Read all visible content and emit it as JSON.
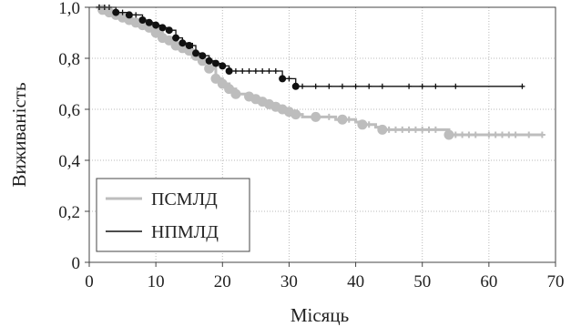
{
  "chart_data": {
    "type": "line",
    "xlabel": "Місяць",
    "ylabel": "Виживаність",
    "xlim": [
      0,
      70
    ],
    "ylim": [
      0,
      1.0
    ],
    "x_ticks": [
      0,
      10,
      20,
      30,
      40,
      50,
      60,
      70
    ],
    "y_ticks": [
      0,
      0.2,
      0.4,
      0.6,
      0.8,
      1.0
    ],
    "x_tick_labels": [
      "0",
      "10",
      "20",
      "30",
      "40",
      "50",
      "60",
      "70"
    ],
    "y_tick_labels": [
      "0",
      "0,2",
      "0,4",
      "0,6",
      "0,8",
      "1,0"
    ],
    "grid": true,
    "legend_position": "bottom-left",
    "series": [
      {
        "name": "ПСМЛД",
        "color": "#bdbdbd",
        "steps": [
          [
            1,
            1.0
          ],
          [
            2,
            0.99
          ],
          [
            3,
            0.98
          ],
          [
            4,
            0.97
          ],
          [
            5,
            0.96
          ],
          [
            6,
            0.95
          ],
          [
            7,
            0.94
          ],
          [
            8,
            0.93
          ],
          [
            9,
            0.92
          ],
          [
            10,
            0.9
          ],
          [
            11,
            0.88
          ],
          [
            12,
            0.87
          ],
          [
            13,
            0.85
          ],
          [
            14,
            0.84
          ],
          [
            15,
            0.83
          ],
          [
            16,
            0.81
          ],
          [
            17,
            0.79
          ],
          [
            18,
            0.76
          ],
          [
            19,
            0.72
          ],
          [
            20,
            0.7
          ],
          [
            21,
            0.68
          ],
          [
            22,
            0.66
          ],
          [
            24,
            0.65
          ],
          [
            25,
            0.64
          ],
          [
            26,
            0.63
          ],
          [
            27,
            0.62
          ],
          [
            28,
            0.61
          ],
          [
            29,
            0.6
          ],
          [
            30,
            0.59
          ],
          [
            31,
            0.58
          ],
          [
            32,
            0.57
          ],
          [
            34,
            0.57
          ],
          [
            37,
            0.56
          ],
          [
            40,
            0.55
          ],
          [
            41,
            0.54
          ],
          [
            43,
            0.53
          ],
          [
            44,
            0.52
          ],
          [
            54,
            0.5
          ],
          [
            68,
            0.5
          ]
        ],
        "events": [
          [
            2,
            0.99
          ],
          [
            3,
            0.98
          ],
          [
            4,
            0.97
          ],
          [
            5,
            0.96
          ],
          [
            6,
            0.95
          ],
          [
            7,
            0.94
          ],
          [
            8,
            0.93
          ],
          [
            9,
            0.92
          ],
          [
            10,
            0.9
          ],
          [
            11,
            0.88
          ],
          [
            12,
            0.87
          ],
          [
            13,
            0.85
          ],
          [
            14,
            0.84
          ],
          [
            15,
            0.83
          ],
          [
            16,
            0.81
          ],
          [
            17,
            0.79
          ],
          [
            18,
            0.76
          ],
          [
            19,
            0.72
          ],
          [
            20,
            0.7
          ],
          [
            21,
            0.68
          ],
          [
            22,
            0.66
          ],
          [
            24,
            0.65
          ],
          [
            25,
            0.64
          ],
          [
            26,
            0.63
          ],
          [
            27,
            0.62
          ],
          [
            28,
            0.61
          ],
          [
            29,
            0.6
          ],
          [
            30,
            0.59
          ],
          [
            31,
            0.58
          ],
          [
            34,
            0.57
          ],
          [
            38,
            0.56
          ],
          [
            41,
            0.54
          ],
          [
            44,
            0.52
          ],
          [
            54,
            0.5
          ]
        ],
        "censored": [
          [
            1.5,
            1.0
          ],
          [
            2.5,
            0.99
          ],
          [
            36,
            0.57
          ],
          [
            39,
            0.56
          ],
          [
            42,
            0.54
          ],
          [
            45,
            0.52
          ],
          [
            46,
            0.52
          ],
          [
            47,
            0.52
          ],
          [
            48,
            0.52
          ],
          [
            49,
            0.52
          ],
          [
            50,
            0.52
          ],
          [
            51,
            0.52
          ],
          [
            52,
            0.52
          ],
          [
            55,
            0.5
          ],
          [
            56,
            0.5
          ],
          [
            57,
            0.5
          ],
          [
            58,
            0.5
          ],
          [
            60,
            0.5
          ],
          [
            61,
            0.5
          ],
          [
            62,
            0.5
          ],
          [
            63,
            0.5
          ],
          [
            64,
            0.5
          ],
          [
            66,
            0.5
          ],
          [
            68,
            0.5
          ]
        ]
      },
      {
        "name": "НПМЛД",
        "color": "#111111",
        "steps": [
          [
            1,
            1.0
          ],
          [
            4,
            0.98
          ],
          [
            6,
            0.97
          ],
          [
            8,
            0.95
          ],
          [
            9,
            0.94
          ],
          [
            10,
            0.93
          ],
          [
            11,
            0.92
          ],
          [
            12,
            0.91
          ],
          [
            13,
            0.88
          ],
          [
            14,
            0.86
          ],
          [
            15,
            0.85
          ],
          [
            16,
            0.82
          ],
          [
            17,
            0.81
          ],
          [
            18,
            0.79
          ],
          [
            19,
            0.78
          ],
          [
            20,
            0.77
          ],
          [
            21,
            0.75
          ],
          [
            29,
            0.72
          ],
          [
            31,
            0.69
          ],
          [
            65,
            0.69
          ]
        ],
        "events": [
          [
            4,
            0.98
          ],
          [
            6,
            0.97
          ],
          [
            8,
            0.95
          ],
          [
            9,
            0.94
          ],
          [
            10,
            0.93
          ],
          [
            11,
            0.92
          ],
          [
            12,
            0.91
          ],
          [
            13,
            0.88
          ],
          [
            14,
            0.86
          ],
          [
            15,
            0.85
          ],
          [
            16,
            0.82
          ],
          [
            17,
            0.81
          ],
          [
            18,
            0.79
          ],
          [
            19,
            0.78
          ],
          [
            20,
            0.77
          ],
          [
            21,
            0.75
          ],
          [
            29,
            0.72
          ],
          [
            31,
            0.69
          ]
        ],
        "censored": [
          [
            1.5,
            1.0
          ],
          [
            2.3,
            1.0
          ],
          [
            3,
            1.0
          ],
          [
            5,
            0.98
          ],
          [
            7,
            0.97
          ],
          [
            15.5,
            0.85
          ],
          [
            22,
            0.75
          ],
          [
            23,
            0.75
          ],
          [
            24,
            0.75
          ],
          [
            25,
            0.75
          ],
          [
            26,
            0.75
          ],
          [
            27,
            0.75
          ],
          [
            28,
            0.75
          ],
          [
            30,
            0.72
          ],
          [
            32,
            0.69
          ],
          [
            34,
            0.69
          ],
          [
            36,
            0.69
          ],
          [
            38,
            0.69
          ],
          [
            40,
            0.69
          ],
          [
            42,
            0.69
          ],
          [
            44,
            0.69
          ],
          [
            48,
            0.69
          ],
          [
            50,
            0.69
          ],
          [
            52,
            0.69
          ],
          [
            55,
            0.69
          ],
          [
            65,
            0.69
          ]
        ]
      }
    ]
  }
}
